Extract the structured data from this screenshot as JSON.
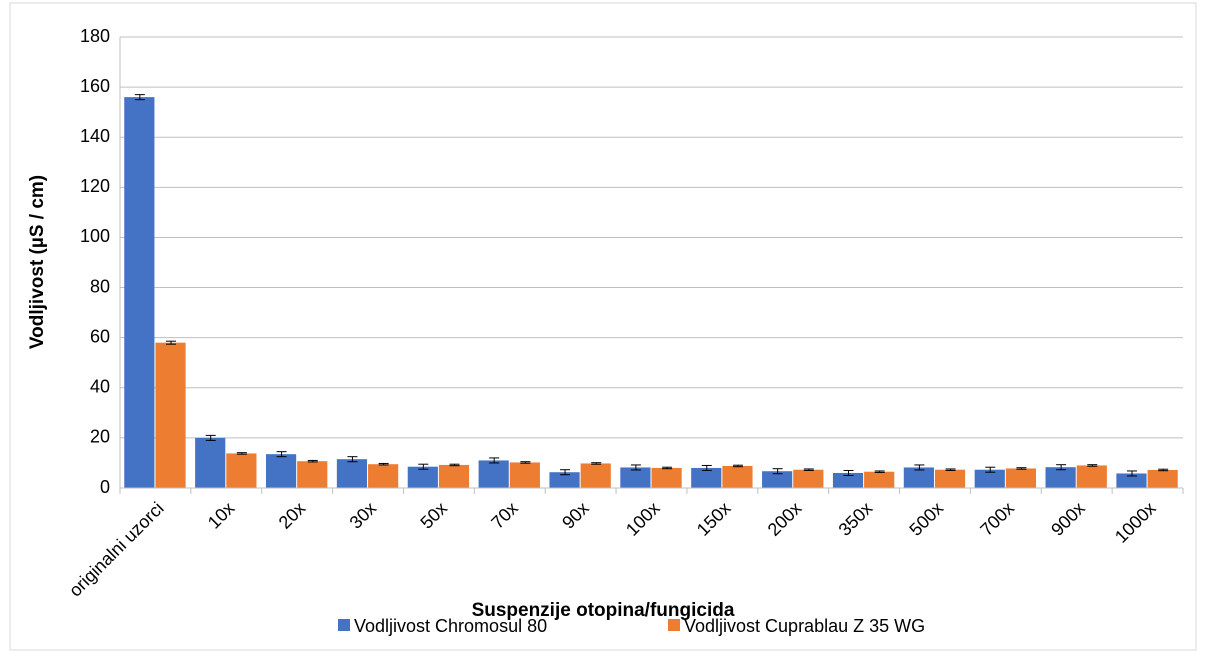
{
  "chart_data": {
    "type": "bar",
    "x_label": "Suspenzije otopina/fungicida",
    "y_label": "Vodljivost (µS / cm)",
    "categories": [
      "originalni uzorci",
      "10x",
      "20x",
      "30x",
      "50x",
      "70x",
      "90x",
      "100x",
      "150x",
      "200x",
      "350x",
      "500x",
      "700x",
      "900x",
      "1000x"
    ],
    "series": [
      {
        "name": "Vodljivost Chromosul 80",
        "color": "#4472c4",
        "values": [
          156,
          20,
          13.5,
          11.5,
          8.5,
          11,
          6.3,
          8.2,
          8,
          6.7,
          6,
          8.2,
          7.3,
          8.3,
          5.8
        ],
        "errors": [
          1,
          1,
          1,
          1,
          1,
          1,
          1,
          1,
          1,
          1,
          1,
          1,
          1,
          1,
          1
        ]
      },
      {
        "name": "Vodljivost Cuprablau Z 35 WG",
        "color": "#ed7d31",
        "values": [
          58,
          13.8,
          10.7,
          9.5,
          9.2,
          10.2,
          9.8,
          8,
          8.8,
          7.3,
          6.5,
          7.3,
          7.8,
          9,
          7.2
        ],
        "errors": [
          0.6,
          0.3,
          0.3,
          0.3,
          0.3,
          0.3,
          0.3,
          0.3,
          0.3,
          0.3,
          0.3,
          0.3,
          0.3,
          0.3,
          0.3
        ]
      }
    ],
    "ylim": [
      0,
      180
    ],
    "yticks": [
      0,
      20,
      40,
      60,
      80,
      100,
      120,
      140,
      160,
      180
    ],
    "grid": true,
    "legend": "bottom"
  }
}
